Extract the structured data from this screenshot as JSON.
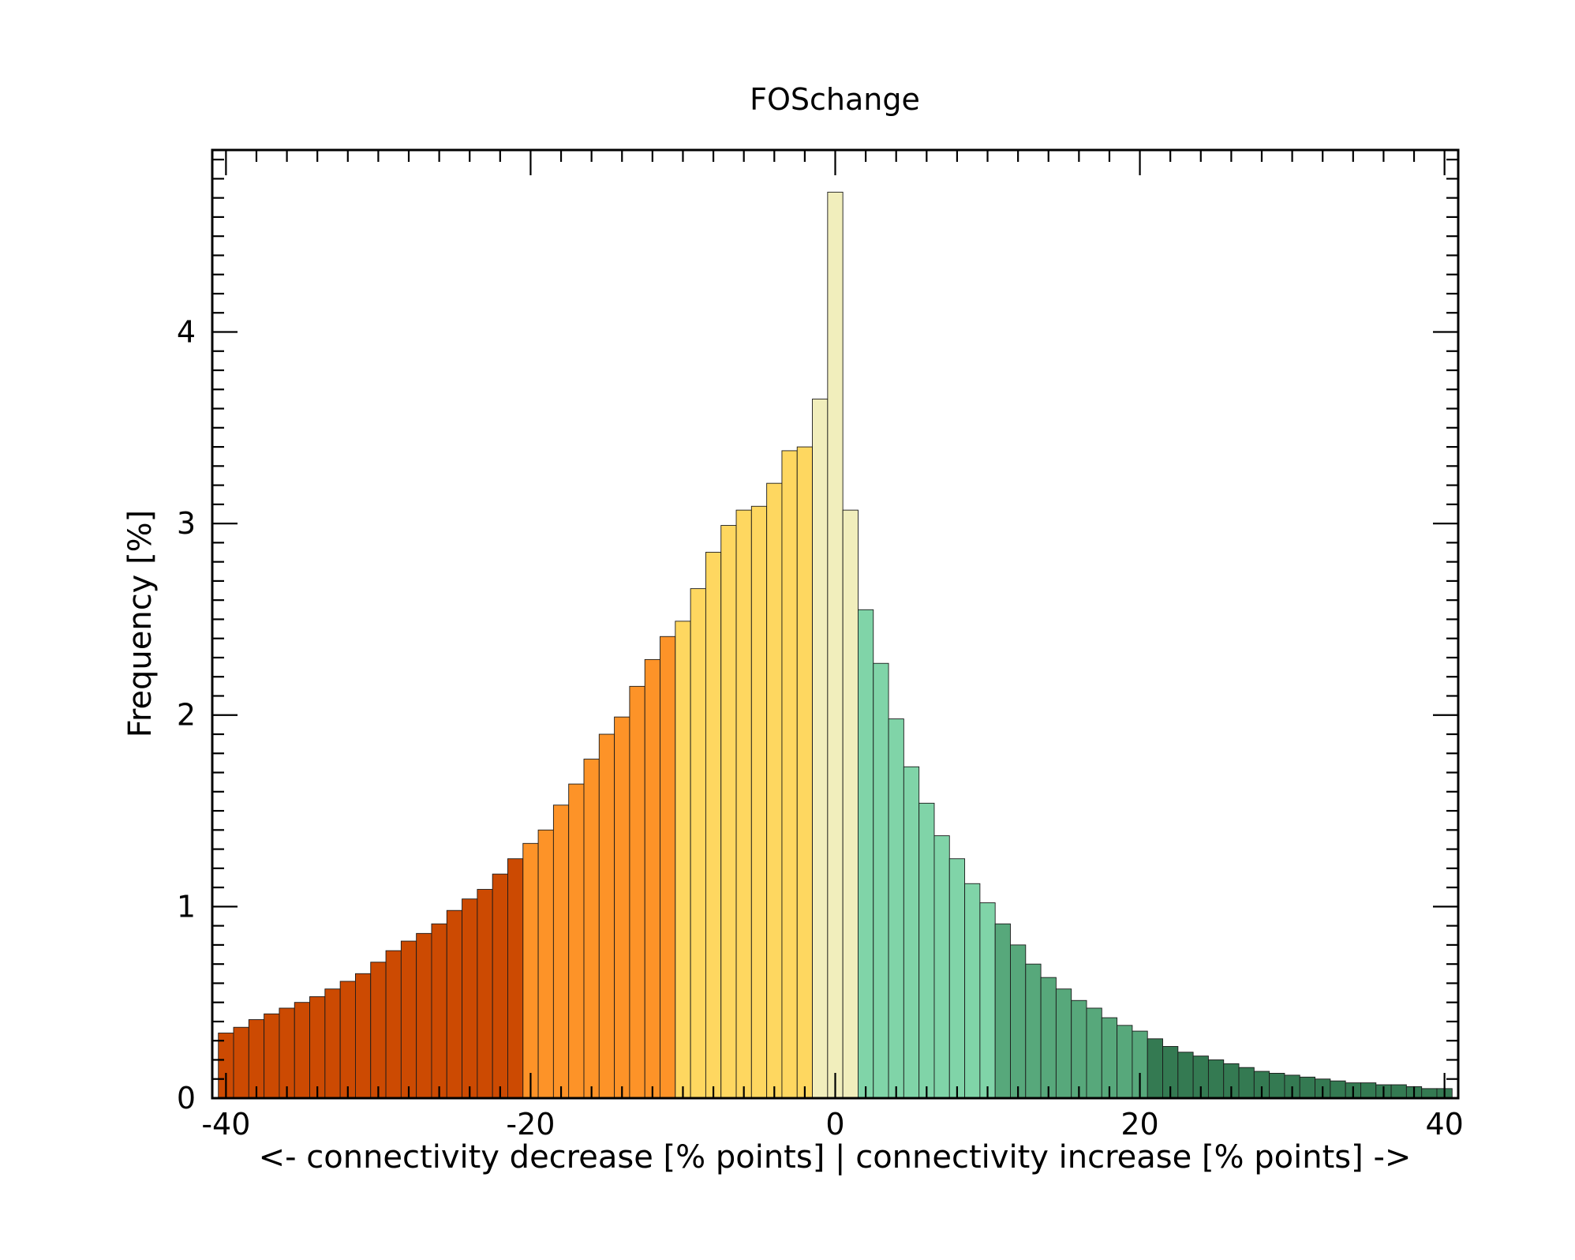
{
  "chart_data": {
    "type": "bar",
    "title": "FOSchange",
    "xlabel": "<- connectivity decrease [% points] | connectivity increase [% points] ->",
    "ylabel": "Frequency [%]",
    "xlim": [
      -40.9,
      40.9
    ],
    "ylim": [
      0,
      4.95
    ],
    "grid": false,
    "x_ticks": [
      "-40",
      "-20",
      "0",
      "20",
      "40"
    ],
    "y_ticks": [
      "0",
      "1",
      "2",
      "3",
      "4"
    ],
    "bin_width": 1,
    "bin_start": -40.5,
    "values": [
      0.34,
      0.37,
      0.41,
      0.44,
      0.47,
      0.5,
      0.53,
      0.57,
      0.61,
      0.65,
      0.71,
      0.77,
      0.82,
      0.86,
      0.91,
      0.98,
      1.04,
      1.09,
      1.17,
      1.25,
      1.33,
      1.4,
      1.53,
      1.64,
      1.77,
      1.9,
      1.99,
      2.15,
      2.29,
      2.41,
      2.49,
      2.66,
      2.85,
      2.99,
      3.07,
      3.09,
      3.21,
      3.38,
      3.4,
      3.65,
      4.73,
      3.07,
      2.55,
      2.27,
      1.98,
      1.73,
      1.54,
      1.37,
      1.25,
      1.12,
      1.02,
      0.91,
      0.8,
      0.7,
      0.63,
      0.57,
      0.51,
      0.47,
      0.42,
      0.38,
      0.35,
      0.31,
      0.27,
      0.24,
      0.22,
      0.2,
      0.18,
      0.16,
      0.14,
      0.13,
      0.12,
      0.11,
      0.1,
      0.09,
      0.08,
      0.08,
      0.07,
      0.07,
      0.06,
      0.05,
      0.05
    ],
    "color_classes": [
      {
        "min": -40.5,
        "max": -20.5,
        "color": "#cc4a02"
      },
      {
        "min": -20.5,
        "max": -10.5,
        "color": "#fd9328"
      },
      {
        "min": -10.5,
        "max": -1.5,
        "color": "#fed760"
      },
      {
        "min": -1.5,
        "max": 1.5,
        "color": "#f1eebc"
      },
      {
        "min": 1.5,
        "max": 10.5,
        "color": "#80d4a8"
      },
      {
        "min": 10.5,
        "max": 20.5,
        "color": "#57a87b"
      },
      {
        "min": 20.5,
        "max": 40.5,
        "color": "#347a52"
      }
    ]
  }
}
